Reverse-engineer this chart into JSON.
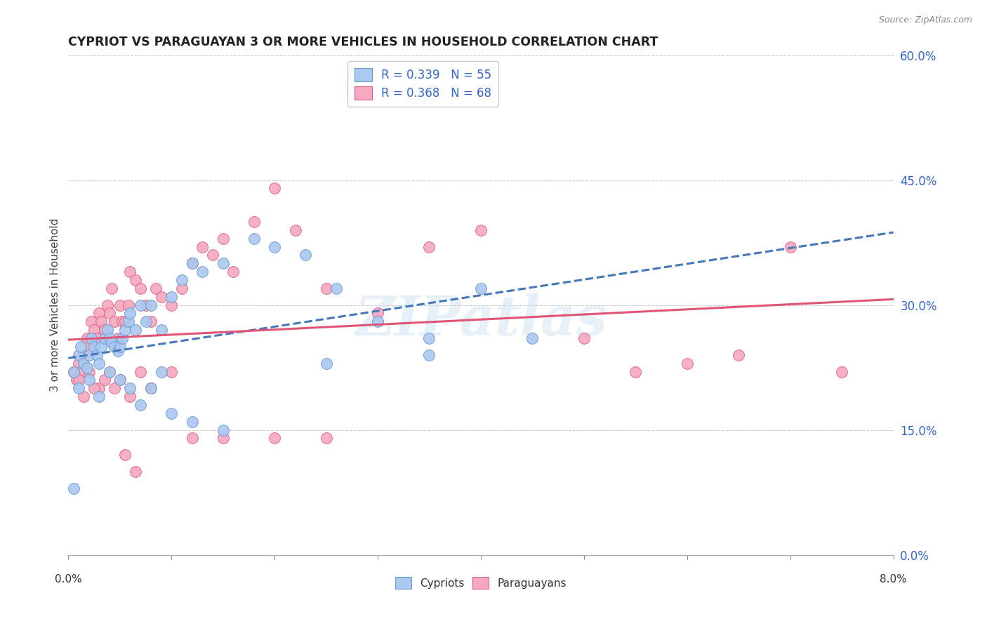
{
  "title": "CYPRIOT VS PARAGUAYAN 3 OR MORE VEHICLES IN HOUSEHOLD CORRELATION CHART",
  "source": "Source: ZipAtlas.com",
  "ylabel": "3 or more Vehicles in Household",
  "xlim": [
    0.0,
    8.0
  ],
  "ylim": [
    0.0,
    60.0
  ],
  "yticks": [
    0.0,
    15.0,
    30.0,
    45.0,
    60.0
  ],
  "xticks": [
    0.0,
    1.0,
    2.0,
    3.0,
    4.0,
    5.0,
    6.0,
    7.0,
    8.0
  ],
  "cypriot_color": "#aac8f0",
  "paraguayan_color": "#f5a8c0",
  "cypriot_edge_color": "#6699cc",
  "paraguayan_edge_color": "#e06080",
  "cypriot_line_color": "#4477bb",
  "paraguayan_line_color": "#e05575",
  "cypriot_line_dash": "--",
  "paraguayan_line_dash": "-",
  "cypriot_R": 0.339,
  "cypriot_N": 55,
  "paraguayan_R": 0.368,
  "paraguayan_N": 68,
  "legend_R_N_color": "#3366cc",
  "watermark": "ZIPatlas",
  "cypriot_x": [
    0.05,
    0.1,
    0.12,
    0.15,
    0.18,
    0.2,
    0.22,
    0.25,
    0.28,
    0.3,
    0.32,
    0.35,
    0.38,
    0.4,
    0.42,
    0.45,
    0.48,
    0.5,
    0.52,
    0.55,
    0.58,
    0.6,
    0.65,
    0.7,
    0.75,
    0.8,
    0.9,
    1.0,
    1.1,
    1.2,
    1.3,
    1.5,
    1.8,
    2.0,
    2.3,
    2.6,
    3.0,
    3.5,
    4.0,
    4.5,
    0.1,
    0.2,
    0.3,
    0.4,
    0.5,
    0.6,
    0.7,
    0.8,
    0.9,
    1.0,
    1.2,
    1.5,
    2.5,
    3.5,
    0.05
  ],
  "cypriot_y": [
    22.0,
    24.0,
    25.0,
    23.0,
    22.5,
    24.0,
    26.0,
    25.0,
    24.0,
    23.0,
    25.0,
    26.0,
    27.0,
    26.0,
    25.5,
    25.0,
    24.5,
    25.0,
    26.0,
    27.0,
    28.0,
    29.0,
    27.0,
    30.0,
    28.0,
    30.0,
    27.0,
    31.0,
    33.0,
    35.0,
    34.0,
    35.0,
    38.0,
    37.0,
    36.0,
    32.0,
    28.0,
    26.0,
    32.0,
    26.0,
    20.0,
    21.0,
    19.0,
    22.0,
    21.0,
    20.0,
    18.0,
    20.0,
    22.0,
    17.0,
    16.0,
    15.0,
    23.0,
    24.0,
    8.0
  ],
  "paraguayan_x": [
    0.05,
    0.08,
    0.1,
    0.12,
    0.15,
    0.18,
    0.2,
    0.22,
    0.25,
    0.28,
    0.3,
    0.32,
    0.35,
    0.38,
    0.4,
    0.42,
    0.45,
    0.48,
    0.5,
    0.52,
    0.55,
    0.58,
    0.6,
    0.65,
    0.7,
    0.75,
    0.8,
    0.85,
    0.9,
    1.0,
    1.1,
    1.2,
    1.3,
    1.4,
    1.5,
    1.6,
    1.8,
    2.0,
    2.2,
    2.5,
    3.0,
    3.5,
    4.0,
    5.0,
    5.5,
    6.0,
    6.5,
    7.0,
    7.5,
    0.1,
    0.2,
    0.3,
    0.4,
    0.5,
    0.6,
    0.7,
    0.8,
    1.0,
    1.5,
    2.0,
    2.5,
    0.15,
    0.25,
    0.35,
    0.45,
    1.2,
    0.55,
    0.65
  ],
  "paraguayan_y": [
    22.0,
    21.0,
    23.0,
    22.0,
    24.0,
    26.0,
    25.0,
    28.0,
    27.0,
    26.0,
    29.0,
    28.0,
    27.0,
    30.0,
    29.0,
    32.0,
    28.0,
    26.0,
    30.0,
    28.0,
    28.0,
    30.0,
    34.0,
    33.0,
    32.0,
    30.0,
    28.0,
    32.0,
    31.0,
    30.0,
    32.0,
    35.0,
    37.0,
    36.0,
    38.0,
    34.0,
    40.0,
    44.0,
    39.0,
    32.0,
    29.0,
    37.0,
    39.0,
    26.0,
    22.0,
    23.0,
    24.0,
    37.0,
    22.0,
    21.0,
    22.0,
    20.0,
    22.0,
    21.0,
    19.0,
    22.0,
    20.0,
    22.0,
    14.0,
    14.0,
    14.0,
    19.0,
    20.0,
    21.0,
    20.0,
    14.0,
    12.0,
    10.0
  ]
}
